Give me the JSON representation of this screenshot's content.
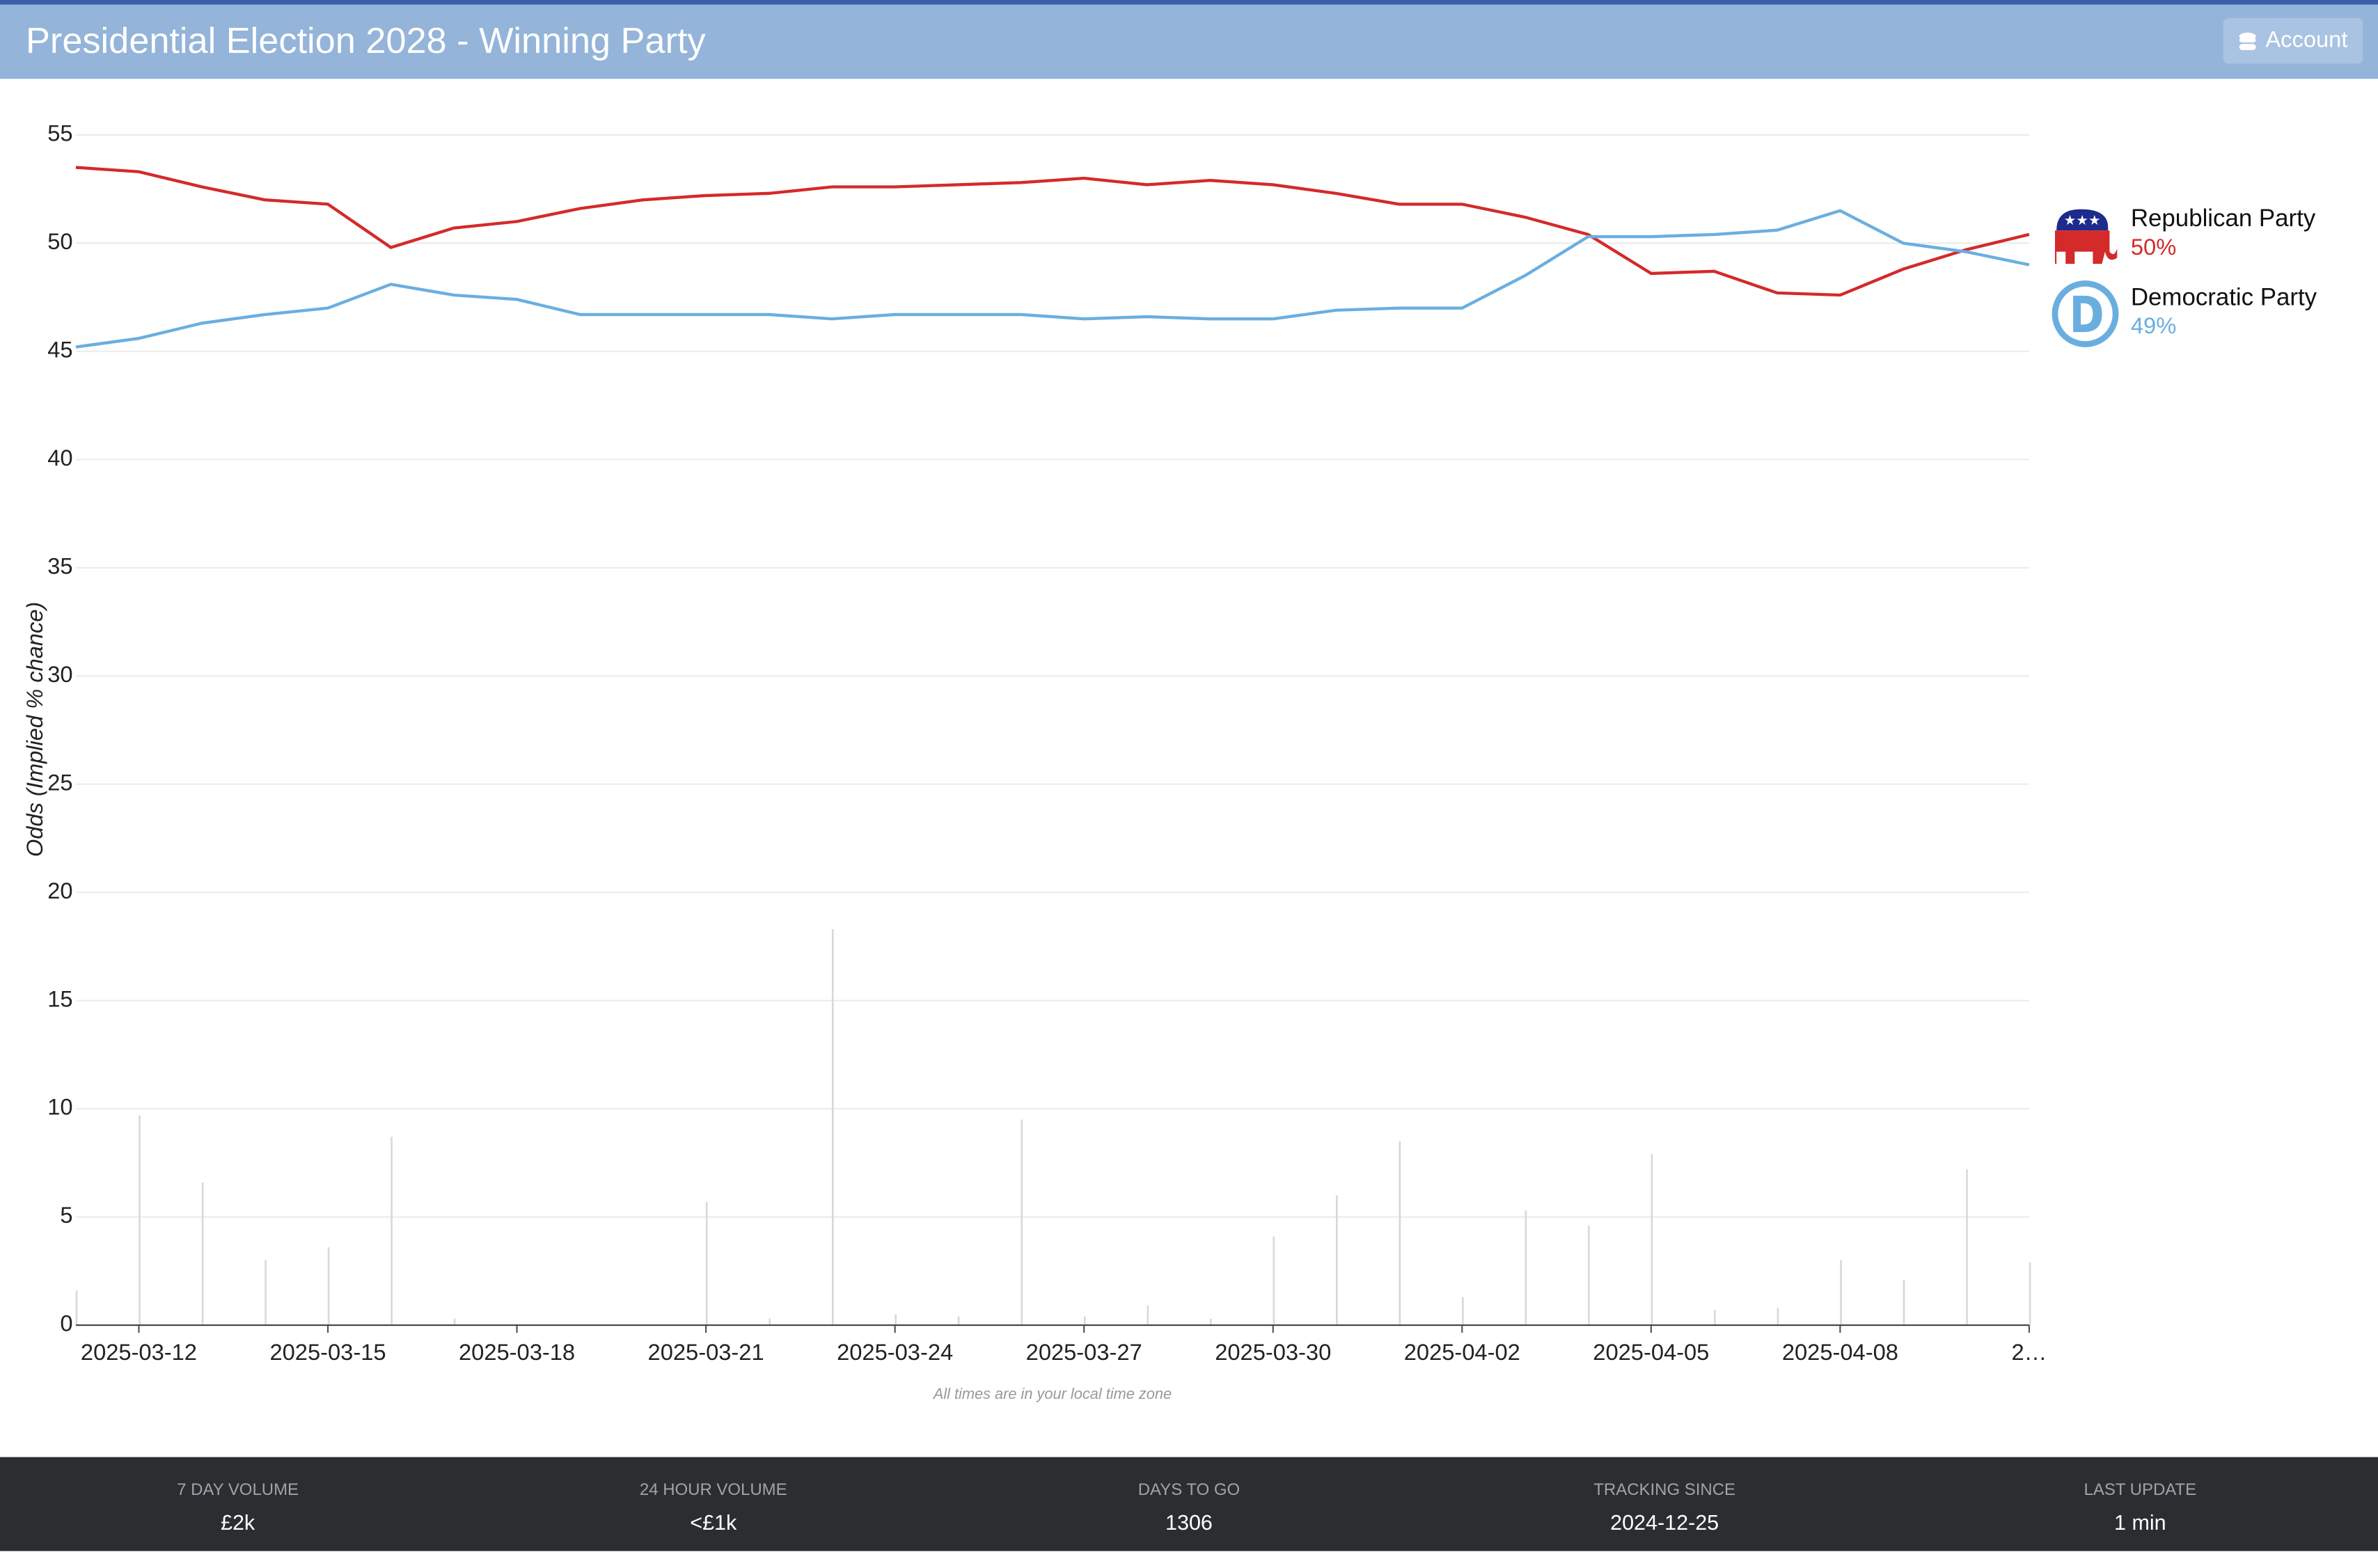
{
  "header": {
    "title": "Presidential Election 2028 - Winning Party",
    "button": "Account"
  },
  "chart_data": {
    "type": "line",
    "y_label": "Odds (Implied % chance)",
    "note": "All times are in your local time zone",
    "x": [
      "2025-03-11",
      "2025-03-12",
      "2025-03-13",
      "2025-03-14",
      "2025-03-15",
      "2025-03-16",
      "2025-03-17",
      "2025-03-18",
      "2025-03-19",
      "2025-03-20",
      "2025-03-21",
      "2025-03-22",
      "2025-03-23",
      "2025-03-24",
      "2025-03-25",
      "2025-03-26",
      "2025-03-27",
      "2025-03-28",
      "2025-03-29",
      "2025-03-30",
      "2025-03-31",
      "2025-04-01",
      "2025-04-02",
      "2025-04-03",
      "2025-04-04",
      "2025-04-05",
      "2025-04-06",
      "2025-04-07",
      "2025-04-08",
      "2025-04-09",
      "2025-04-10",
      "2025-04-11"
    ],
    "xlim": [
      "2025-03-11",
      "2025-04-11"
    ],
    "xticks": [
      "2025-03-12",
      "2025-03-15",
      "2025-03-18",
      "2025-03-21",
      "2025-03-24",
      "2025-03-27",
      "2025-03-30",
      "2025-04-02",
      "2025-04-05",
      "2025-04-08",
      {
        "value": "2025-04-11",
        "label": "2…"
      }
    ],
    "ylim": [
      0,
      55
    ],
    "yticks": [
      0,
      5,
      10,
      15,
      20,
      25,
      30,
      35,
      40,
      45,
      50,
      55
    ],
    "grid": true,
    "series": [
      {
        "name": "Republican Party",
        "color": "#d42a2a",
        "last_label": "50%",
        "values": [
          53.5,
          53.3,
          52.6,
          52.0,
          51.8,
          49.8,
          50.7,
          51.0,
          51.6,
          52.0,
          52.2,
          52.3,
          52.6,
          52.6,
          52.7,
          52.8,
          53.0,
          52.7,
          52.9,
          52.7,
          52.3,
          51.8,
          51.8,
          51.2,
          50.4,
          48.6,
          48.7,
          47.7,
          47.6,
          48.8,
          49.7,
          50.4
        ]
      },
      {
        "name": "Democratic Party",
        "color": "#6aaee0",
        "last_label": "49%",
        "values": [
          45.2,
          45.6,
          46.3,
          46.7,
          47.0,
          48.1,
          47.6,
          47.4,
          46.7,
          46.7,
          46.7,
          46.7,
          46.5,
          46.7,
          46.7,
          46.7,
          46.5,
          46.6,
          46.5,
          46.5,
          46.9,
          47.0,
          47.0,
          48.5,
          50.3,
          50.3,
          50.4,
          50.6,
          51.5,
          50.0,
          49.6,
          49.0
        ]
      }
    ],
    "volume": {
      "color": "#d8d8d8",
      "values": [
        1.6,
        9.7,
        6.6,
        3.0,
        3.6,
        8.7,
        0.3,
        0,
        0,
        0,
        5.7,
        0.3,
        18.3,
        0.5,
        0.4,
        9.5,
        0.4,
        0.9,
        0.3,
        4.1,
        6.0,
        8.5,
        1.3,
        5.3,
        4.6,
        7.9,
        0.7,
        0.8,
        3.0,
        2.1,
        7.2,
        2.9
      ]
    }
  },
  "footer": [
    {
      "label": "7 DAY VOLUME",
      "value": "£2k"
    },
    {
      "label": "24 HOUR VOLUME",
      "value": "<£1k"
    },
    {
      "label": "DAYS TO GO",
      "value": "1306"
    },
    {
      "label": "TRACKING SINCE",
      "value": "2024-12-25"
    },
    {
      "label": "LAST UPDATE",
      "value": "1 min"
    }
  ]
}
